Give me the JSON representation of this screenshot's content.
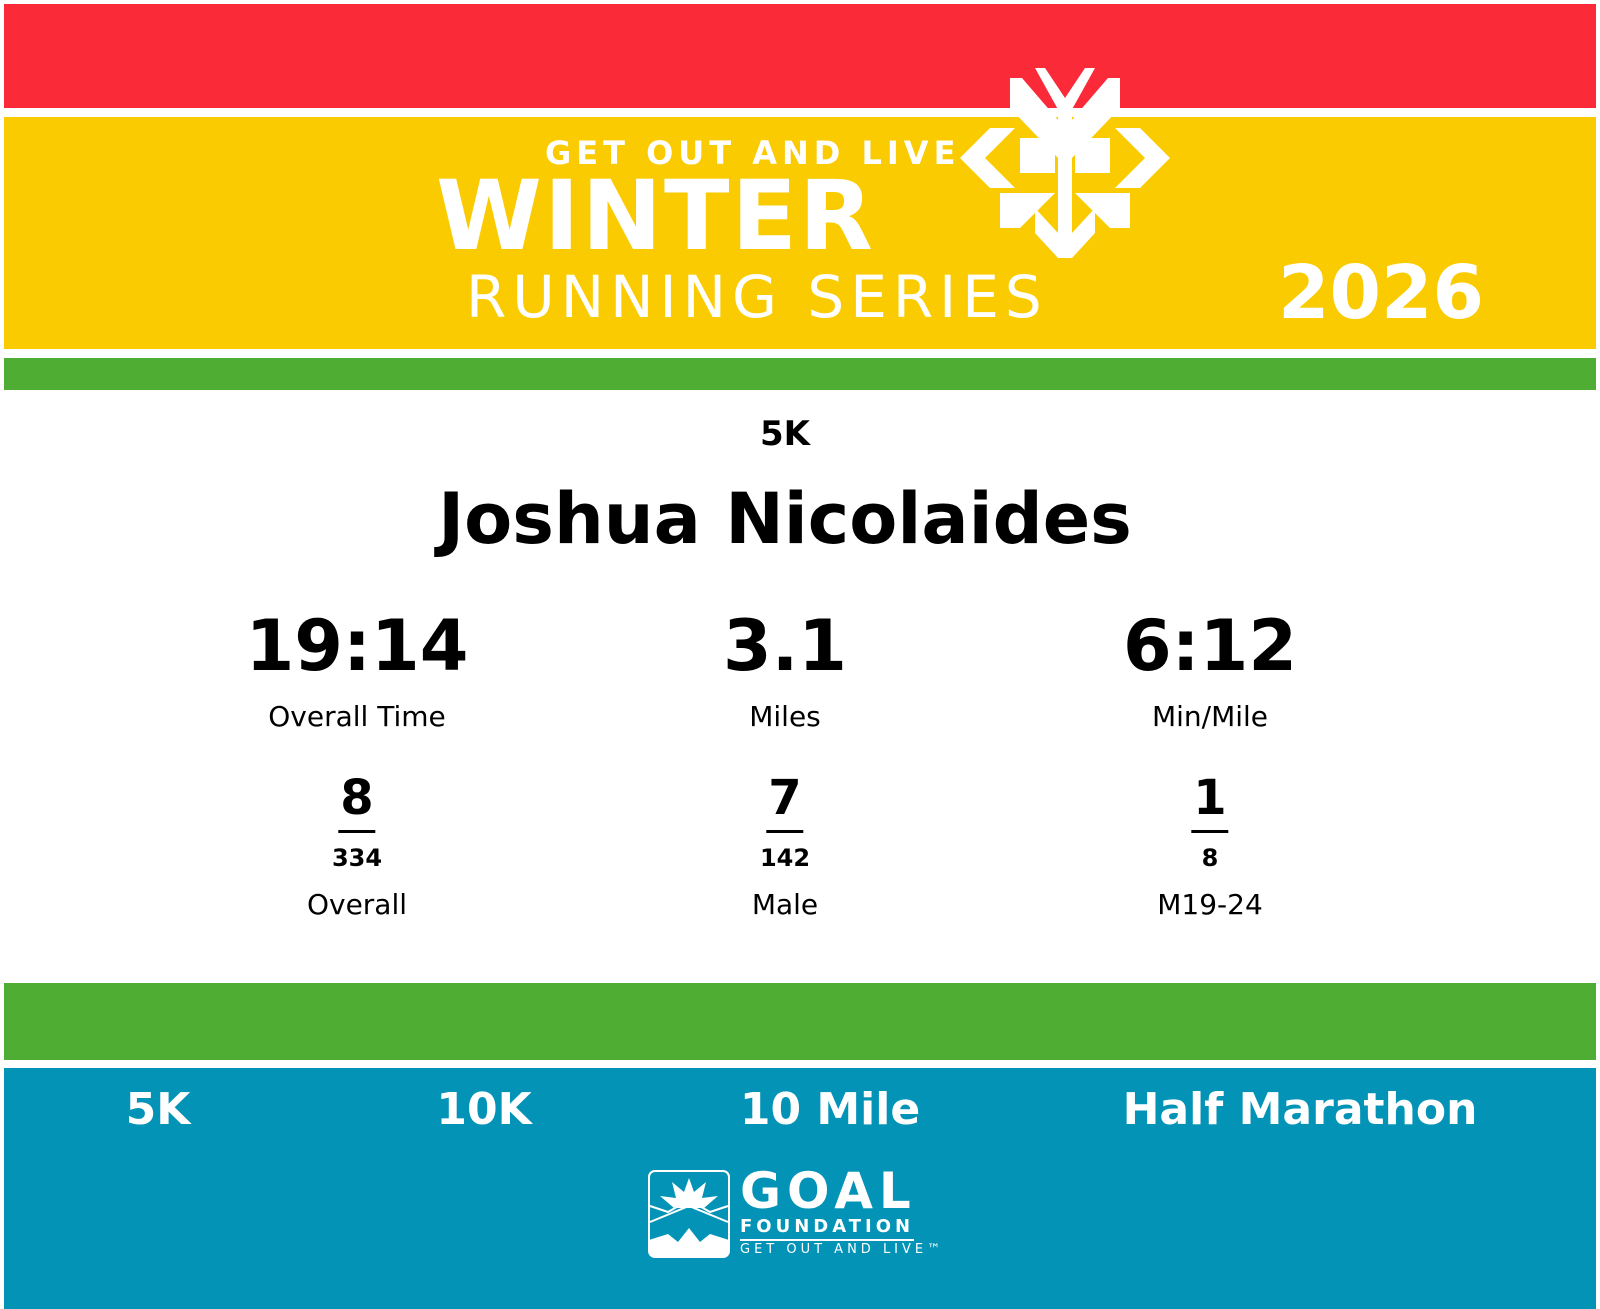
{
  "header": {
    "tagline": "GET OUT AND LIVE",
    "title": "WINTER",
    "subtitle": "RUNNING SERIES",
    "year": "2026"
  },
  "result": {
    "race": "5K",
    "name": "Joshua Nicolaides",
    "stats": [
      {
        "value": "19:14",
        "label": "Overall Time"
      },
      {
        "value": "3.1",
        "label": "Miles"
      },
      {
        "value": "6:12",
        "label": "Min/Mile"
      }
    ],
    "ranks": [
      {
        "place": "8",
        "total": "334",
        "label": "Overall"
      },
      {
        "place": "7",
        "total": "142",
        "label": "Male"
      },
      {
        "place": "1",
        "total": "8",
        "label": "M19-24"
      }
    ]
  },
  "footer": {
    "races": [
      "5K",
      "10K",
      "10 Mile",
      "Half Marathon"
    ],
    "logo": {
      "name": "GOAL",
      "sub": "FOUNDATION",
      "tagline": "GET OUT AND LIVE™"
    }
  },
  "colors": {
    "red": "#fb2a39",
    "yellow": "#facb00",
    "green": "#50ad33",
    "blue": "#0293b6"
  }
}
